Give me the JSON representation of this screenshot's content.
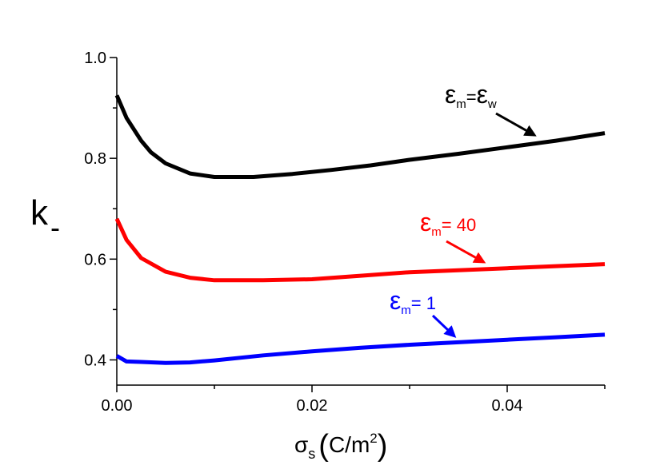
{
  "chart_data": {
    "type": "line",
    "xlabel": {
      "symbol": "σ",
      "sub": "s",
      "unit_open": "(",
      "unit_text": "C/m",
      "unit_sup": "2",
      "unit_close": ")"
    },
    "ylabel": {
      "main": "k",
      "sub": "-"
    },
    "xlim": [
      0.0,
      0.05
    ],
    "ylim": [
      0.35,
      1.0
    ],
    "xticks": [
      {
        "value": 0.0,
        "label": "0.00"
      },
      {
        "value": 0.02,
        "label": "0.02"
      },
      {
        "value": 0.04,
        "label": "0.04"
      }
    ],
    "yticks": [
      {
        "value": 0.4,
        "label": "0.4"
      },
      {
        "value": 0.6,
        "label": "0.6"
      },
      {
        "value": 0.8,
        "label": "0.8"
      },
      {
        "value": 1.0,
        "label": "1.0"
      }
    ],
    "x_minor_step": 0.01,
    "y_minor_step": 0.1,
    "grid": false,
    "series": [
      {
        "color": "#000000",
        "x": [
          0.0,
          0.001,
          0.0025,
          0.0035,
          0.005,
          0.0075,
          0.01,
          0.014,
          0.018,
          0.022,
          0.026,
          0.03,
          0.035,
          0.04,
          0.045,
          0.05
        ],
        "y": [
          0.925,
          0.88,
          0.835,
          0.812,
          0.79,
          0.77,
          0.763,
          0.763,
          0.769,
          0.777,
          0.786,
          0.797,
          0.809,
          0.822,
          0.835,
          0.85
        ]
      },
      {
        "color": "#ff0000",
        "x": [
          0.0,
          0.001,
          0.0025,
          0.005,
          0.0075,
          0.01,
          0.015,
          0.02,
          0.025,
          0.03,
          0.035,
          0.04,
          0.045,
          0.05
        ],
        "y": [
          0.68,
          0.638,
          0.602,
          0.575,
          0.563,
          0.558,
          0.558,
          0.56,
          0.567,
          0.574,
          0.578,
          0.582,
          0.586,
          0.59
        ]
      },
      {
        "color": "#0000ff",
        "x": [
          0.0,
          0.001,
          0.0025,
          0.005,
          0.0075,
          0.01,
          0.015,
          0.02,
          0.025,
          0.03,
          0.035,
          0.04,
          0.045,
          0.05
        ],
        "y": [
          0.408,
          0.397,
          0.396,
          0.394,
          0.395,
          0.399,
          0.409,
          0.417,
          0.424,
          0.43,
          0.435,
          0.44,
          0.445,
          0.45
        ]
      }
    ],
    "annotations": [
      {
        "color": "#000000",
        "symbol": "ε",
        "sub": "m",
        "text": "=",
        "symbol2": "ε",
        "sub2": "w",
        "point_to": {
          "x": 0.0428,
          "y": 0.846
        }
      },
      {
        "color": "#ff0000",
        "symbol": "ε",
        "sub": "m",
        "text": "= 40",
        "symbol2": "",
        "sub2": "",
        "point_to": {
          "x": 0.0376,
          "y": 0.594
        }
      },
      {
        "color": "#0000ff",
        "symbol": "ε",
        "sub": "m",
        "text": "= 1",
        "symbol2": "",
        "sub2": "",
        "point_to": {
          "x": 0.0346,
          "y": 0.447
        }
      }
    ]
  }
}
